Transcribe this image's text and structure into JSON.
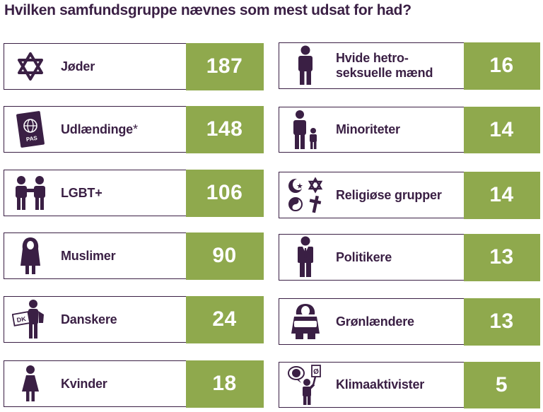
{
  "title": "Hvilken samfundsgruppe nævnes som mest udsat for had?",
  "colors": {
    "text": "#3a1f44",
    "bar": "#8fa94d",
    "number": "#ffffff"
  },
  "chart_data": {
    "type": "table",
    "title": "Hvilken samfundsgruppe nævnes som mest udsat for had?",
    "categories": [
      "Jøder",
      "Udlændinge*",
      "LGBT+",
      "Muslimer",
      "Danskere",
      "Kvinder",
      "Hvide hetro-seksuelle mænd",
      "Minoriteter",
      "Religiøse grupper",
      "Politikere",
      "Grønlændere",
      "Klimaaktivister"
    ],
    "values": [
      187,
      148,
      106,
      90,
      24,
      18,
      16,
      14,
      14,
      13,
      13,
      5
    ],
    "items": [
      {
        "label": "Jøder",
        "value": 187,
        "icon": "star-of-david-icon"
      },
      {
        "label": "Udlændinge",
        "suffix": "*",
        "value": 148,
        "icon": "passport-icon",
        "icon_text": "PAS"
      },
      {
        "label": "LGBT+",
        "value": 106,
        "icon": "couple-icon"
      },
      {
        "label": "Muslimer",
        "value": 90,
        "icon": "hijab-woman-icon"
      },
      {
        "label": "Danskere",
        "value": 24,
        "icon": "person-with-sign-icon",
        "icon_text": "DK"
      },
      {
        "label": "Kvinder",
        "value": 18,
        "icon": "woman-icon"
      },
      {
        "label": "Hvide hetro-seksuelle mænd",
        "value": 16,
        "icon": "man-icon"
      },
      {
        "label": "Minoriteter",
        "value": 14,
        "icon": "adult-child-icon"
      },
      {
        "label": "Religiøse grupper",
        "value": 14,
        "icon": "religious-symbols-icon"
      },
      {
        "label": "Politikere",
        "value": 13,
        "icon": "politician-icon"
      },
      {
        "label": "Grønlændere",
        "value": 13,
        "icon": "greenlander-icon"
      },
      {
        "label": "Klimaaktivister",
        "value": 5,
        "icon": "climate-activist-icon",
        "icon_text": "Ø"
      }
    ]
  }
}
